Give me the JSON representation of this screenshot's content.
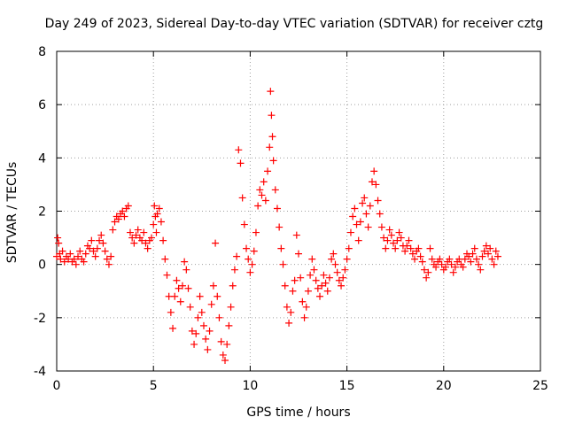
{
  "chart_data": {
    "type": "scatter",
    "title": "Day 249 of 2023, Sidereal Day-to-day VTEC variation (SDTVAR) for receiver cztg",
    "xlabel": "GPS time / hours",
    "ylabel": "SDTVAR / TECUs",
    "xlim": [
      0,
      25
    ],
    "ylim": [
      -4,
      8
    ],
    "xticks": [
      0,
      5,
      10,
      15,
      20,
      25
    ],
    "yticks": [
      -4,
      -2,
      0,
      2,
      4,
      6,
      8
    ],
    "grid": true,
    "marker": "+",
    "series": [
      {
        "name": "SDTVAR",
        "color": "#ff0000",
        "points": [
          [
            0.0,
            0.3
          ],
          [
            0.05,
            1.0
          ],
          [
            0.1,
            0.8
          ],
          [
            0.15,
            0.4
          ],
          [
            0.2,
            0.2
          ],
          [
            0.3,
            0.5
          ],
          [
            0.4,
            0.1
          ],
          [
            0.5,
            0.3
          ],
          [
            0.6,
            0.2
          ],
          [
            0.7,
            0.4
          ],
          [
            0.8,
            0.1
          ],
          [
            0.9,
            0.2
          ],
          [
            1.0,
            0.0
          ],
          [
            1.1,
            0.3
          ],
          [
            1.2,
            0.5
          ],
          [
            1.3,
            0.2
          ],
          [
            1.4,
            0.1
          ],
          [
            1.5,
            0.4
          ],
          [
            1.6,
            0.7
          ],
          [
            1.7,
            0.6
          ],
          [
            1.8,
            0.9
          ],
          [
            1.9,
            0.5
          ],
          [
            2.0,
            0.3
          ],
          [
            2.1,
            0.6
          ],
          [
            2.2,
            0.9
          ],
          [
            2.3,
            1.1
          ],
          [
            2.4,
            0.8
          ],
          [
            2.5,
            0.5
          ],
          [
            2.6,
            0.2
          ],
          [
            2.7,
            0.0
          ],
          [
            2.8,
            0.3
          ],
          [
            2.9,
            1.3
          ],
          [
            3.0,
            1.6
          ],
          [
            3.1,
            1.8
          ],
          [
            3.2,
            1.7
          ],
          [
            3.3,
            1.9
          ],
          [
            3.4,
            2.0
          ],
          [
            3.5,
            1.8
          ],
          [
            3.6,
            2.1
          ],
          [
            3.7,
            2.2
          ],
          [
            3.8,
            1.2
          ],
          [
            3.9,
            1.0
          ],
          [
            4.0,
            0.8
          ],
          [
            4.1,
            1.1
          ],
          [
            4.2,
            1.3
          ],
          [
            4.3,
            1.0
          ],
          [
            4.4,
            0.9
          ],
          [
            4.5,
            1.2
          ],
          [
            4.6,
            0.8
          ],
          [
            4.7,
            0.6
          ],
          [
            4.8,
            0.9
          ],
          [
            4.9,
            1.0
          ],
          [
            5.0,
            1.5
          ],
          [
            5.05,
            2.2
          ],
          [
            5.1,
            1.8
          ],
          [
            5.15,
            1.2
          ],
          [
            5.2,
            1.9
          ],
          [
            5.3,
            2.1
          ],
          [
            5.4,
            1.6
          ],
          [
            5.5,
            0.9
          ],
          [
            5.6,
            0.2
          ],
          [
            5.7,
            -0.4
          ],
          [
            5.8,
            -1.2
          ],
          [
            5.9,
            -1.8
          ],
          [
            6.0,
            -2.4
          ],
          [
            6.1,
            -1.2
          ],
          [
            6.2,
            -0.6
          ],
          [
            6.3,
            -0.9
          ],
          [
            6.4,
            -1.4
          ],
          [
            6.5,
            -0.8
          ],
          [
            6.6,
            0.1
          ],
          [
            6.7,
            -0.2
          ],
          [
            6.8,
            -0.9
          ],
          [
            6.9,
            -1.6
          ],
          [
            7.0,
            -2.5
          ],
          [
            7.1,
            -3.0
          ],
          [
            7.2,
            -2.6
          ],
          [
            7.3,
            -2.0
          ],
          [
            7.4,
            -1.2
          ],
          [
            7.5,
            -1.8
          ],
          [
            7.6,
            -2.3
          ],
          [
            7.7,
            -2.8
          ],
          [
            7.8,
            -3.2
          ],
          [
            7.9,
            -2.5
          ],
          [
            8.0,
            -1.5
          ],
          [
            8.1,
            -0.8
          ],
          [
            8.2,
            0.8
          ],
          [
            8.3,
            -1.2
          ],
          [
            8.4,
            -2.0
          ],
          [
            8.5,
            -2.9
          ],
          [
            8.6,
            -3.4
          ],
          [
            8.7,
            -3.6
          ],
          [
            8.8,
            -3.0
          ],
          [
            8.9,
            -2.3
          ],
          [
            9.0,
            -1.6
          ],
          [
            9.1,
            -0.8
          ],
          [
            9.2,
            -0.2
          ],
          [
            9.3,
            0.3
          ],
          [
            9.4,
            4.3
          ],
          [
            9.5,
            3.8
          ],
          [
            9.6,
            2.5
          ],
          [
            9.7,
            1.5
          ],
          [
            9.8,
            0.6
          ],
          [
            9.9,
            0.2
          ],
          [
            10.0,
            -0.3
          ],
          [
            10.1,
            0.0
          ],
          [
            10.2,
            0.5
          ],
          [
            10.3,
            1.2
          ],
          [
            10.4,
            2.2
          ],
          [
            10.5,
            2.8
          ],
          [
            10.6,
            2.6
          ],
          [
            10.7,
            3.1
          ],
          [
            10.8,
            2.4
          ],
          [
            10.9,
            3.5
          ],
          [
            11.0,
            4.4
          ],
          [
            11.05,
            6.5
          ],
          [
            11.1,
            5.6
          ],
          [
            11.15,
            4.8
          ],
          [
            11.2,
            3.9
          ],
          [
            11.3,
            2.8
          ],
          [
            11.4,
            2.1
          ],
          [
            11.5,
            1.4
          ],
          [
            11.6,
            0.6
          ],
          [
            11.7,
            0.0
          ],
          [
            11.8,
            -0.8
          ],
          [
            11.9,
            -1.6
          ],
          [
            12.0,
            -2.2
          ],
          [
            12.1,
            -1.8
          ],
          [
            12.2,
            -1.0
          ],
          [
            12.3,
            -0.6
          ],
          [
            12.4,
            1.1
          ],
          [
            12.5,
            0.4
          ],
          [
            12.6,
            -0.5
          ],
          [
            12.7,
            -1.4
          ],
          [
            12.8,
            -2.0
          ],
          [
            12.9,
            -1.6
          ],
          [
            13.0,
            -1.0
          ],
          [
            13.1,
            -0.4
          ],
          [
            13.2,
            0.2
          ],
          [
            13.3,
            -0.2
          ],
          [
            13.4,
            -0.6
          ],
          [
            13.5,
            -0.9
          ],
          [
            13.6,
            -1.2
          ],
          [
            13.7,
            -0.8
          ],
          [
            13.8,
            -0.4
          ],
          [
            13.9,
            -0.7
          ],
          [
            14.0,
            -1.0
          ],
          [
            14.1,
            -0.5
          ],
          [
            14.2,
            0.2
          ],
          [
            14.3,
            0.4
          ],
          [
            14.4,
            0.0
          ],
          [
            14.5,
            -0.3
          ],
          [
            14.6,
            -0.6
          ],
          [
            14.7,
            -0.8
          ],
          [
            14.8,
            -0.5
          ],
          [
            14.9,
            -0.2
          ],
          [
            15.0,
            0.2
          ],
          [
            15.1,
            0.6
          ],
          [
            15.2,
            1.2
          ],
          [
            15.3,
            1.8
          ],
          [
            15.4,
            2.1
          ],
          [
            15.5,
            1.5
          ],
          [
            15.6,
            0.9
          ],
          [
            15.7,
            1.6
          ],
          [
            15.8,
            2.3
          ],
          [
            15.9,
            2.5
          ],
          [
            16.0,
            1.9
          ],
          [
            16.1,
            1.4
          ],
          [
            16.2,
            2.2
          ],
          [
            16.3,
            3.1
          ],
          [
            16.4,
            3.5
          ],
          [
            16.5,
            3.0
          ],
          [
            16.6,
            2.4
          ],
          [
            16.7,
            1.9
          ],
          [
            16.8,
            1.4
          ],
          [
            16.9,
            1.0
          ],
          [
            17.0,
            0.6
          ],
          [
            17.1,
            0.9
          ],
          [
            17.2,
            1.3
          ],
          [
            17.3,
            1.1
          ],
          [
            17.4,
            0.8
          ],
          [
            17.5,
            0.6
          ],
          [
            17.6,
            0.9
          ],
          [
            17.7,
            1.2
          ],
          [
            17.8,
            1.0
          ],
          [
            17.9,
            0.7
          ],
          [
            18.0,
            0.5
          ],
          [
            18.1,
            0.7
          ],
          [
            18.2,
            0.9
          ],
          [
            18.3,
            0.6
          ],
          [
            18.4,
            0.4
          ],
          [
            18.5,
            0.2
          ],
          [
            18.6,
            0.5
          ],
          [
            18.7,
            0.6
          ],
          [
            18.8,
            0.3
          ],
          [
            18.9,
            0.1
          ],
          [
            19.0,
            -0.2
          ],
          [
            19.1,
            -0.5
          ],
          [
            19.2,
            -0.3
          ],
          [
            19.3,
            0.6
          ],
          [
            19.4,
            0.2
          ],
          [
            19.5,
            0.0
          ],
          [
            19.6,
            -0.1
          ],
          [
            19.7,
            0.1
          ],
          [
            19.8,
            0.2
          ],
          [
            19.9,
            0.0
          ],
          [
            20.0,
            -0.2
          ],
          [
            20.1,
            -0.1
          ],
          [
            20.2,
            0.1
          ],
          [
            20.3,
            0.2
          ],
          [
            20.4,
            0.0
          ],
          [
            20.5,
            -0.3
          ],
          [
            20.6,
            -0.1
          ],
          [
            20.7,
            0.1
          ],
          [
            20.8,
            0.2
          ],
          [
            20.9,
            0.0
          ],
          [
            21.0,
            -0.1
          ],
          [
            21.1,
            0.2
          ],
          [
            21.2,
            0.4
          ],
          [
            21.3,
            0.3
          ],
          [
            21.4,
            0.1
          ],
          [
            21.5,
            0.4
          ],
          [
            21.6,
            0.6
          ],
          [
            21.7,
            0.2
          ],
          [
            21.8,
            0.0
          ],
          [
            21.9,
            -0.2
          ],
          [
            22.0,
            0.3
          ],
          [
            22.1,
            0.5
          ],
          [
            22.2,
            0.7
          ],
          [
            22.3,
            0.4
          ],
          [
            22.4,
            0.6
          ],
          [
            22.5,
            0.2
          ],
          [
            22.6,
            0.0
          ],
          [
            22.7,
            0.5
          ],
          [
            22.8,
            0.3
          ]
        ]
      }
    ]
  }
}
